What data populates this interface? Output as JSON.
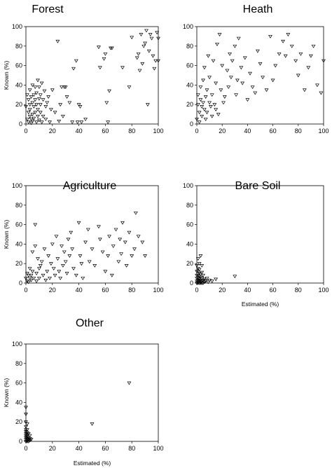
{
  "chart_data": [
    {
      "type": "scatter",
      "title": "Forest",
      "xlabel": "",
      "ylabel": "Known (%)",
      "xlim": [
        0,
        100
      ],
      "ylim": [
        0,
        100
      ],
      "xticks": [
        0,
        20,
        40,
        60,
        80,
        100
      ],
      "yticks": [
        0,
        20,
        40,
        60,
        80,
        100
      ],
      "series": [
        {
          "x": [
            0,
            1,
            1,
            2,
            2,
            2,
            3,
            3,
            3,
            3,
            4,
            4,
            4,
            5,
            5,
            5,
            5,
            6,
            6,
            6,
            7,
            7,
            7,
            8,
            8,
            8,
            9,
            9,
            9,
            10,
            10,
            10,
            11,
            11,
            11,
            12,
            12,
            13,
            13,
            14,
            15,
            15,
            16,
            17,
            18,
            19,
            20,
            22,
            24,
            25,
            26,
            27,
            28,
            29,
            30,
            31,
            33,
            35,
            36,
            38,
            39,
            40,
            41,
            42,
            45,
            55,
            56,
            59,
            60,
            61,
            62,
            63,
            64,
            65,
            73,
            78,
            80,
            84,
            85,
            86,
            87,
            88,
            89,
            90,
            91,
            92,
            93,
            94,
            95,
            96,
            97,
            98,
            99,
            100,
            100
          ],
          "y": [
            18,
            5,
            30,
            12,
            25,
            2,
            8,
            20,
            35,
            15,
            5,
            28,
            1,
            22,
            10,
            40,
            3,
            18,
            30,
            6,
            25,
            12,
            38,
            20,
            2,
            32,
            15,
            45,
            8,
            26,
            38,
            4,
            20,
            12,
            30,
            42,
            2,
            25,
            8,
            34,
            18,
            5,
            22,
            28,
            2,
            15,
            35,
            12,
            85,
            3,
            20,
            38,
            8,
            38,
            38,
            28,
            22,
            2,
            57,
            65,
            2,
            20,
            18,
            2,
            5,
            79,
            58,
            67,
            72,
            22,
            2,
            34,
            78,
            78,
            58,
            38,
            89,
            68,
            72,
            55,
            92,
            62,
            80,
            83,
            96,
            20,
            75,
            92,
            88,
            70,
            57,
            65,
            94,
            65,
            88
          ]
        }
      ]
    },
    {
      "type": "scatter",
      "title": "Heath",
      "xlabel": "",
      "ylabel": "",
      "xlim": [
        0,
        100
      ],
      "ylim": [
        0,
        100
      ],
      "xticks": [
        0,
        20,
        40,
        60,
        80,
        100
      ],
      "yticks": [
        0,
        20,
        40,
        60,
        80,
        100
      ],
      "series": [
        {
          "x": [
            0,
            1,
            1,
            2,
            2,
            3,
            3,
            4,
            4,
            5,
            5,
            6,
            6,
            7,
            7,
            8,
            8,
            9,
            10,
            10,
            11,
            12,
            12,
            13,
            14,
            15,
            15,
            16,
            17,
            18,
            19,
            20,
            21,
            22,
            24,
            25,
            26,
            27,
            28,
            30,
            31,
            32,
            33,
            35,
            36,
            38,
            40,
            42,
            44,
            46,
            48,
            50,
            52,
            55,
            58,
            60,
            62,
            65,
            68,
            70,
            72,
            75,
            78,
            80,
            82,
            85,
            88,
            90,
            92,
            95,
            98,
            100
          ],
          "y": [
            5,
            20,
            30,
            2,
            12,
            25,
            38,
            8,
            18,
            22,
            45,
            15,
            58,
            28,
            5,
            35,
            12,
            70,
            22,
            48,
            18,
            8,
            30,
            65,
            20,
            42,
            15,
            82,
            10,
            92,
            35,
            60,
            22,
            28,
            55,
            38,
            72,
            48,
            65,
            80,
            30,
            45,
            88,
            58,
            42,
            68,
            25,
            52,
            38,
            32,
            75,
            62,
            48,
            35,
            90,
            45,
            60,
            72,
            85,
            70,
            92,
            80,
            65,
            50,
            72,
            35,
            58,
            70,
            80,
            40,
            32,
            65
          ]
        }
      ]
    },
    {
      "type": "scatter",
      "title": "Agriculture",
      "xlabel": "",
      "ylabel": "Known (%)",
      "xlim": [
        0,
        100
      ],
      "ylim": [
        0,
        100
      ],
      "xticks": [
        0,
        20,
        40,
        60,
        80,
        100
      ],
      "yticks": [
        0,
        20,
        40,
        60,
        80,
        100
      ],
      "series": [
        {
          "x": [
            0,
            1,
            1,
            2,
            2,
            3,
            3,
            4,
            4,
            5,
            5,
            6,
            7,
            7,
            8,
            8,
            9,
            10,
            10,
            11,
            12,
            13,
            14,
            15,
            16,
            17,
            18,
            19,
            20,
            21,
            22,
            23,
            24,
            25,
            26,
            27,
            28,
            29,
            30,
            31,
            32,
            33,
            34,
            35,
            36,
            38,
            40,
            41,
            42,
            43,
            45,
            47,
            48,
            50,
            52,
            55,
            56,
            58,
            60,
            62,
            63,
            65,
            66,
            68,
            70,
            71,
            72,
            73,
            75,
            76,
            78,
            80,
            82,
            83,
            85,
            88,
            90
          ],
          "y": [
            5,
            2,
            10,
            8,
            1,
            5,
            15,
            3,
            8,
            32,
            12,
            5,
            38,
            60,
            10,
            2,
            25,
            15,
            5,
            18,
            22,
            8,
            35,
            3,
            12,
            28,
            5,
            20,
            40,
            15,
            8,
            48,
            25,
            12,
            5,
            38,
            18,
            32,
            22,
            10,
            45,
            28,
            52,
            35,
            15,
            8,
            62,
            28,
            20,
            5,
            42,
            55,
            22,
            35,
            18,
            58,
            45,
            32,
            12,
            28,
            48,
            8,
            38,
            55,
            22,
            45,
            30,
            62,
            42,
            18,
            52,
            28,
            35,
            72,
            48,
            42,
            28
          ]
        }
      ]
    },
    {
      "type": "scatter",
      "title": "Bare Soil",
      "xlabel": "Estimated (%)",
      "ylabel": "",
      "xlim": [
        0,
        100
      ],
      "ylim": [
        0,
        100
      ],
      "xticks": [
        0,
        20,
        40,
        60,
        80,
        100
      ],
      "yticks": [
        0,
        20,
        40,
        60,
        80,
        100
      ],
      "series": [
        {
          "x": [
            0,
            0,
            0,
            0,
            0,
            0,
            1,
            1,
            1,
            1,
            1,
            1,
            1,
            1,
            2,
            2,
            2,
            2,
            2,
            2,
            2,
            3,
            3,
            3,
            3,
            3,
            3,
            4,
            4,
            4,
            4,
            4,
            5,
            5,
            5,
            6,
            6,
            7,
            8,
            9,
            10,
            12,
            15,
            30
          ],
          "y": [
            0,
            2,
            5,
            8,
            12,
            18,
            0,
            1,
            3,
            5,
            8,
            12,
            15,
            25,
            0,
            2,
            4,
            7,
            10,
            14,
            20,
            0,
            1,
            3,
            6,
            9,
            28,
            0,
            2,
            5,
            11,
            18,
            0,
            3,
            8,
            1,
            4,
            2,
            5,
            1,
            3,
            2,
            4,
            7
          ]
        }
      ]
    },
    {
      "type": "scatter",
      "title": "Other",
      "xlabel": "Estimated (%)",
      "ylabel": "Known (%)",
      "xlim": [
        0,
        100
      ],
      "ylim": [
        0,
        100
      ],
      "xticks": [
        0,
        20,
        40,
        60,
        80,
        100
      ],
      "yticks": [
        0,
        20,
        40,
        60,
        80,
        100
      ],
      "series": [
        {
          "x": [
            0,
            0,
            0,
            0,
            0,
            0,
            0,
            0,
            0,
            0,
            0,
            1,
            1,
            1,
            1,
            1,
            1,
            1,
            1,
            2,
            2,
            2,
            2,
            3,
            3,
            3,
            4,
            50,
            78
          ],
          "y": [
            0,
            2,
            4,
            6,
            8,
            10,
            12,
            15,
            20,
            28,
            35,
            0,
            1,
            3,
            5,
            7,
            9,
            12,
            18,
            0,
            2,
            4,
            8,
            1,
            3,
            6,
            2,
            18,
            60
          ]
        }
      ]
    }
  ]
}
